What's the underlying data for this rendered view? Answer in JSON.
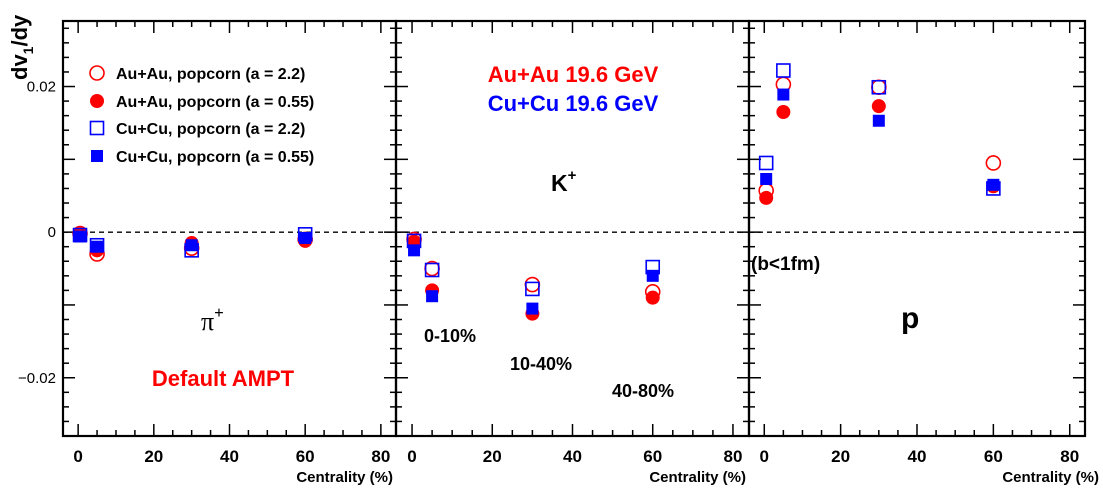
{
  "chart_data": {
    "type": "scatter",
    "ylabel_main": "dv",
    "ylabel_sub": "1",
    "ylabel_tail": "/dy",
    "ylim": [
      -0.028,
      0.029
    ],
    "y_ticks": [
      {
        "v": 0.02,
        "label": "0.02"
      },
      {
        "v": 0,
        "label": "0"
      },
      {
        "v": -0.02,
        "label": "−0.02"
      }
    ],
    "xlim": [
      -4,
      84
    ],
    "x_ticks": [
      0,
      20,
      40,
      60,
      80
    ],
    "xlabel": "Centrality (%)",
    "legend": [
      {
        "label": "Au+Au, popcorn (a = 2.2)",
        "marker": "circle-open",
        "color": "#ff0000"
      },
      {
        "label": "Au+Au, popcorn (a = 0.55)",
        "marker": "circle-filled",
        "color": "#ff0000"
      },
      {
        "label": "Cu+Cu, popcorn (a = 2.2)",
        "marker": "square-open",
        "color": "#0000ff"
      },
      {
        "label": "Cu+Cu, popcorn (a = 0.55)",
        "marker": "square-filled",
        "color": "#0000ff"
      }
    ],
    "panels": [
      {
        "particle": "π",
        "charge": "+",
        "series": [
          {
            "name": "Au+Au, popcorn (a = 2.2)",
            "x": [
              0.5,
              5,
              30,
              60
            ],
            "y": [
              -0.0002,
              -0.003,
              -0.0022,
              -0.001
            ]
          },
          {
            "name": "Au+Au, popcorn (a = 0.55)",
            "x": [
              0.5,
              5,
              30,
              60
            ],
            "y": [
              -0.0003,
              -0.0025,
              -0.0015,
              -0.0012
            ]
          },
          {
            "name": "Cu+Cu, popcorn (a = 2.2)",
            "x": [
              0.5,
              5,
              30,
              60
            ],
            "y": [
              -0.0004,
              -0.0018,
              -0.0025,
              -0.0003
            ]
          },
          {
            "name": "Cu+Cu, popcorn (a = 0.55)",
            "x": [
              0.5,
              5,
              30,
              60
            ],
            "y": [
              -0.0006,
              -0.002,
              -0.0018,
              -0.0008
            ]
          }
        ]
      },
      {
        "particle": "K",
        "charge": "+",
        "series": [
          {
            "name": "Au+Au, popcorn (a = 2.2)",
            "x": [
              0.5,
              5,
              30,
              60
            ],
            "y": [
              -0.001,
              -0.005,
              -0.0072,
              -0.0082
            ]
          },
          {
            "name": "Au+Au, popcorn (a = 0.55)",
            "x": [
              0.5,
              5,
              30,
              60
            ],
            "y": [
              -0.0013,
              -0.008,
              -0.0112,
              -0.009
            ]
          },
          {
            "name": "Cu+Cu, popcorn (a = 2.2)",
            "x": [
              0.5,
              5,
              30,
              60
            ],
            "y": [
              -0.0012,
              -0.0052,
              -0.0078,
              -0.0048
            ]
          },
          {
            "name": "Cu+Cu, popcorn (a = 0.55)",
            "x": [
              0.5,
              5,
              30,
              60
            ],
            "y": [
              -0.0025,
              -0.0088,
              -0.0105,
              -0.006
            ]
          }
        ]
      },
      {
        "particle": "p",
        "charge": "",
        "series": [
          {
            "name": "Au+Au, popcorn (a = 2.2)",
            "x": [
              0.5,
              5,
              30,
              60
            ],
            "y": [
              0.0057,
              0.0203,
              0.0199,
              0.0095
            ]
          },
          {
            "name": "Au+Au, popcorn (a = 0.55)",
            "x": [
              0.5,
              5,
              30,
              60
            ],
            "y": [
              0.0047,
              0.0165,
              0.0173,
              0.0063
            ]
          },
          {
            "name": "Cu+Cu, popcorn (a = 2.2)",
            "x": [
              0.5,
              5,
              30,
              60
            ],
            "y": [
              0.0095,
              0.0222,
              0.0199,
              0.006
            ]
          },
          {
            "name": "Cu+Cu, popcorn (a = 0.55)",
            "x": [
              0.5,
              5,
              30,
              60
            ],
            "y": [
              0.0073,
              0.0189,
              0.0153,
              0.0065
            ]
          }
        ]
      }
    ],
    "annotations": {
      "model": "Default AMPT",
      "system_auau": "Au+Au 19.6 GeV",
      "system_cucu": "Cu+Cu 19.6 GeV",
      "centrality_bins": [
        "0-10%",
        "10-40%",
        "40-80%"
      ],
      "impact": "(b<1fm)"
    }
  }
}
